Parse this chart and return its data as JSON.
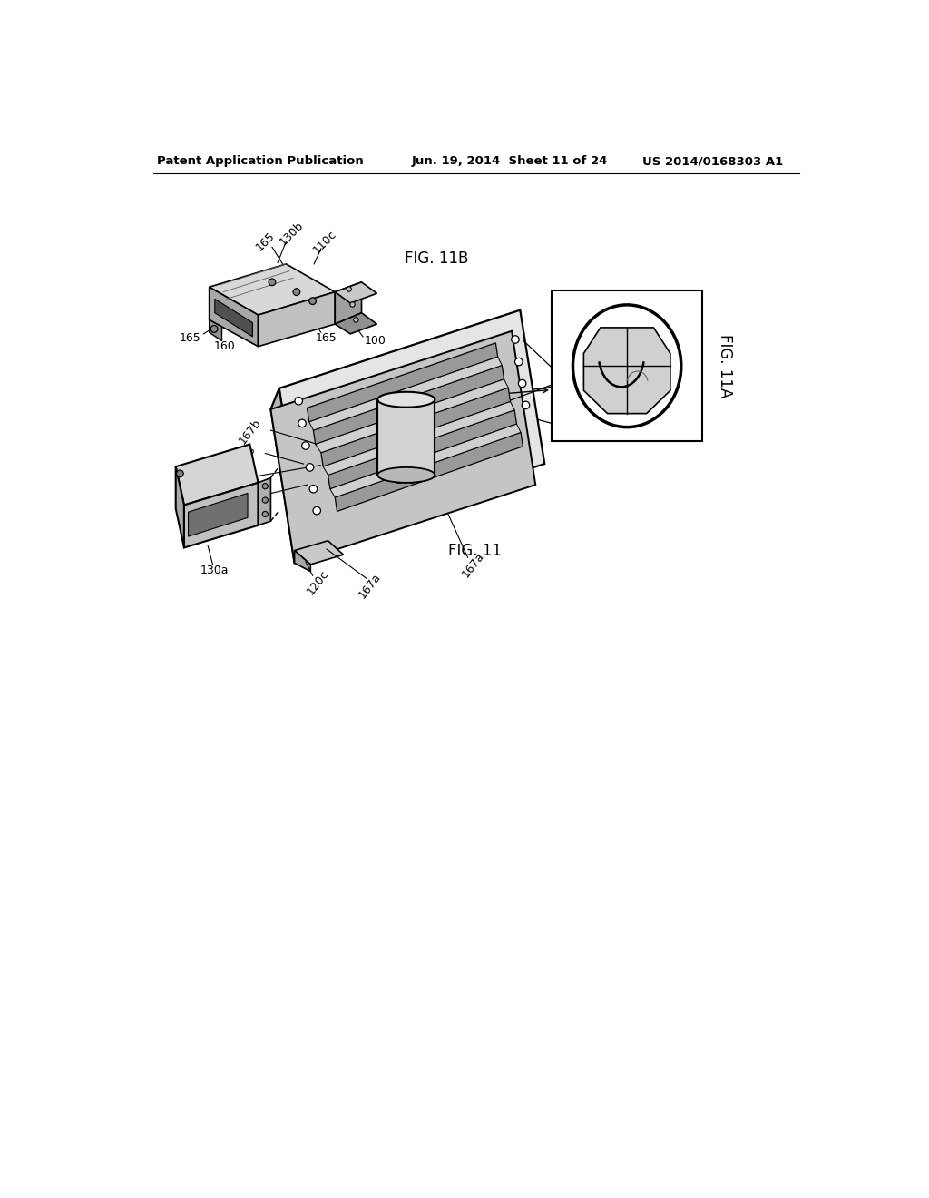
{
  "header_left": "Patent Application Publication",
  "header_mid": "Jun. 19, 2014  Sheet 11 of 24",
  "header_right": "US 2014/0168303 A1",
  "fig11_label": "FIG. 11",
  "fig11a_label": "FIG. 11A",
  "fig11b_label": "FIG. 11B",
  "bg_color": "#ffffff",
  "line_color": "#000000",
  "light_gray": "#d8d8d8",
  "mid_gray": "#b0b0b0",
  "dark_gray": "#808080"
}
